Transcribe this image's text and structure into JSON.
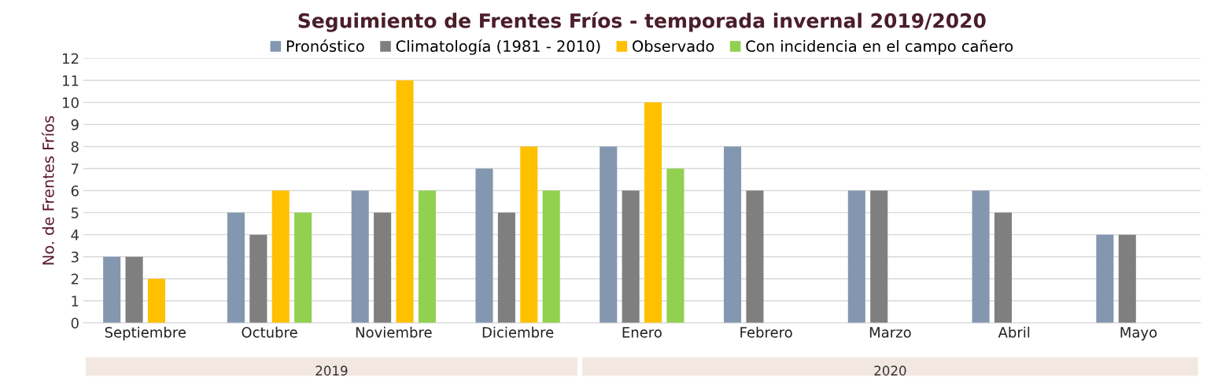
{
  "chart_data": {
    "type": "bar",
    "title": "Seguimiento de Frentes Fríos - temporada invernal 2019/2020",
    "ylabel": "No. de Frentes Fríos",
    "categories": [
      "Septiembre",
      "Octubre",
      "Noviembre",
      "Diciembre",
      "Enero",
      "Febrero",
      "Marzo",
      "Abril",
      "Mayo"
    ],
    "series": [
      {
        "name": "Pronóstico",
        "color": "#8497b0",
        "values": [
          3,
          5,
          6,
          7,
          8,
          8,
          6,
          6,
          4
        ]
      },
      {
        "name": "Climatología (1981 - 2010)",
        "color": "#7f7f7f",
        "values": [
          3,
          4,
          5,
          5,
          6,
          6,
          6,
          5,
          4
        ]
      },
      {
        "name": "Observado",
        "color": "#ffc000",
        "values": [
          2,
          6,
          11,
          8,
          10,
          null,
          null,
          null,
          null
        ]
      },
      {
        "name": "Con incidencia en el campo cañero",
        "color": "#92d050",
        "values": [
          null,
          5,
          6,
          6,
          7,
          null,
          null,
          null,
          null
        ]
      }
    ],
    "ylim": [
      0,
      12
    ],
    "yticks": [
      0,
      1,
      2,
      3,
      4,
      5,
      6,
      7,
      8,
      9,
      10,
      11,
      12
    ],
    "grid": "y",
    "legend": "top",
    "annotations": [
      "2019",
      "2020"
    ]
  }
}
